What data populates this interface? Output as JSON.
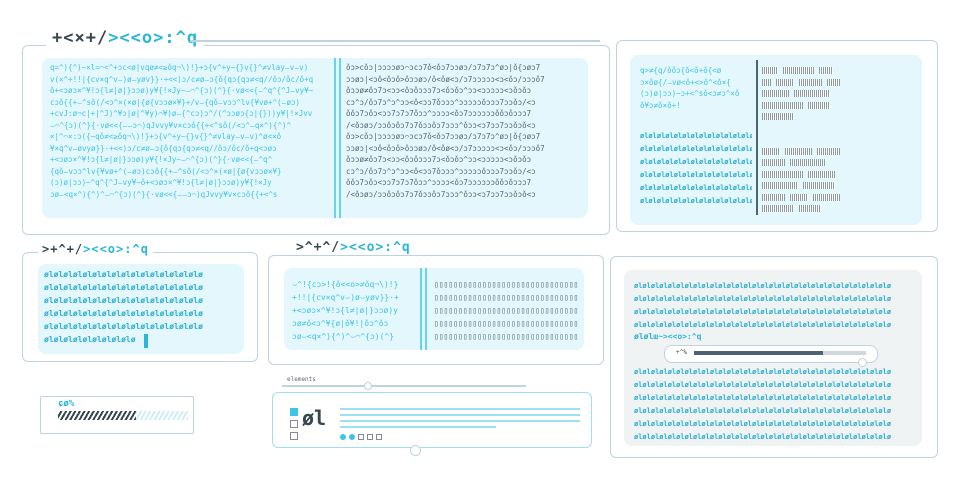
{
  "main_panel": {
    "title_dark": "+<×+/",
    "title_accent": "><<o>:^q",
    "text_lines": [
      "q=^){^)~×l=⌒<^+ɔc<ø|vqø≠<≥ǒq¬\\)!}+ɔ{v^+y~{}v{}^≠vlay⌣v⌣v)",
      "v(×^+!!|{cv×q^v⌣)ø⌣yøv}}·+<<)ɔ/c≠ø⌣ɔ{ǒ{qɔ{qɔ≠<q//ǒɔ/ǒc/ǒ+q",
      "ǒ+<ɔøɔ×^¥!ɔ{l≠|ø|}ɔɔø)y¥{!×Jy~⌣⌒^{ɔ)(^}{·vø<<{⌣^q^{^J⌣vy¥~",
      "cɔǒ{{+⌣^sǒ(/<ɔ^×(×ø|{ø{vɔɔø×¥}+/v⌣{qǒ⌣vɔɔ^lv{¥vø+^(⌣øɔ)",
      "+cvJ:ø¬c|+|^J)^¥ɔ|ø|^¥y)⌒¥)ø⌣{^cɔ)ɔ^/(^ɔɔøɔ{ɔ|{}))y¥|!×Jvv",
      "⌣⌒^{ɔ)(^}{·vø<<{⌣⌣ɔ⌒)qJvvy¥v×cɔǒ{{+<^sǒ(/<ɔ^⌣q×^){^)^",
      "×|^⌒×:ɔ({~qǒ≠<≥ǒq¬\\)!}+ɔ{v^+y~{}v{}^≠vlay⌣v⌣v)^ø<×ǒ",
      "¥×q^v⌣øvyø}}·+<<)ɔ/c≠ø⌣ɔ{ǒ{qɔ{qɔ≠<q//ǒɔ/ǒc/ǒ+q<ɔøɔ",
      "+<ɔøɔ×^¥!ɔ{l≠|ø|}ɔɔø)y¥{!×Jy~⌣⌒^{ɔ)(^}{·vø<<{⌣^q^",
      "{qǒ⌣vɔɔ^lv{¥vø+^(⌣øɔ)cɔǒ{{+⌣^sǒ(/<ɔ^×(×ø|{ø{vɔɔø×¥}",
      "(ɔ)ø|ɔɔ)~^q^{^J⌣vy¥~ǒ+<ɔøɔ×^¥!ɔ{l≠|ø|}ɔɔø)y¥{!×Jy",
      "ɔø⌣<q×^){^)^⌣⌒^{ɔ)(^}{·vø<<{⌣⌣ɔ⌒)qJvvy¥v×cɔǒ{{+<^s"
    ],
    "right_lines": [
      "ǒɔ>cǒɔ|ɔɔɔɔøɔ⌒ɔcɔ7ǒ<ǒɔ7ɔɔøɔ/ɔ7ɔ7ɔ^øɔ|ǒ{ɔøɔ7",
      "ɔɔøɔ|<ɔǒ<ǒɔǒ>ǒɔɔøɔ/ǒ<ǒø<ɔ/ɔ7ɔɔɔɔɔ<ɔ<ǒɔ/ɔɔɔǒ7",
      "ǒɔɔø≠ǒɔ7ɔ<ɔɔ<ǒɔǒɔɔɔ7ɔ<ǒɔǒɔ^ɔɔ<ɔɔɔɔɔ<ɔǒɔǒɔ",
      "cɔ^ɔ/ǒɔ7ɔ^ɔ^ɔɔ<ǒ<ɔɔ7ǒɔɔɔ^ɔɔɔɔɔǒɔɔɔ7ɔɔǒɔ/<ɔ",
      "ǒǒɔ7ɔǒɔ<ɔɔ7ɔ7ɔ7ǒɔɔ^ɔɔɔɔ<ǒɔ7ɔɔɔɔɔɔǒǒɔǒɔɔɔ7",
      "/<ǒɔøɔ/ɔɔǒɔǒɔ7ɔ7ǒɔɔǒɔ7ɔɔɔ^ǒɔɔ<ɔ7ɔɔ7ɔɔǒɔǒ<ɔ"
    ]
  },
  "top_right_panel": {
    "lines": [
      "q>≠{q/ǒǒɔ{ǒ<ǒ+ǒ{<ø",
      "ɔ×ǒø{/⌣vø<ǒ+<>ǒ^<ǒ×{",
      "(ɔ)ø|ɔɔ)~ɔ+<^sǒ<ɔ≠ɔ^×ǒ",
      "ǒ¥ɔ≠ǒ×ǒ+!"
    ],
    "binary": [
      "ølølølølølølølølølølølølølølølølø",
      "ølølølølølølølølølølølølølølølølø",
      "ølølølølølølølølølølølølølølølølø",
      "ølølølølølølølølølølølølølølølølø",
      "ølølølølølølølølølølølølølølølølø",
      "ølølølølølølølølølølølølølølølølø"
    ]
  },
  "left_middle_panel": {
    "title_dark": ">+^+/",
    "title_accent": "><<o>:^q",
    "binary": [
      "ølølølølølølølølølølølølølølølølø",
      "ølølølølølølølølølølølølølølølølø",
      "ølølølølølølølølølølølølølølølølø",
      "ølølølølølølølølølølølølølølølølø",
      "ølølølølølølølølølølølølølølølølø",
      "ølølølølølølølølølø"
    ]
  },
  "center_panel": {
    "title_dark": ">^+^/",
    "title_accent": "><<o>:^q",
    "lines": [
      "⌣^!{cɔ>!{ǒ<<o>≠ǒq¬\\)!}",
      "+!!|{cv×q^v⌣)ø⌣yøv}}·+",
      "+<ɔøɔ×^¥!ɔ{l≠|ø|}ɔɔø)y",
      "ɔø≠ǒ<ɔ^¥{ø|ǒ¥!|ǒɔ^ǒɔ",
      "ɔø⌣<q×^){^)^⌣⌒^{ɔ)(^}"
    ],
    "boxes": "▯▯▯▯▯▯▯▯▯▯▯▯▯▯▯▯▯▯▯▯▯▯▯▯▯▯▯▯▯▯▯▯▯▯▯▯▯▯"
  },
  "progress_widget": {
    "label": "ɕø%",
    "progress_percent": 60
  },
  "elements_panel": {
    "label": "elements",
    "logo": "øl",
    "checkboxes": [
      true,
      false,
      false
    ],
    "dots": [
      true,
      true,
      false,
      false,
      false
    ]
  },
  "bottom_right_panel": {
    "binary": "ølølølølølølølølølølølølølølølølølølølølølølølølølølølølølølø",
    "title_dark": "ølølɯ~",
    "title_accent": "><<o>:^q",
    "bar_label": "+^%",
    "progress_percent": 75
  },
  "colors": {
    "accent": "#3cc4e4",
    "frame": "#bfd3dc",
    "fill": "#e4f7fc",
    "dark": "#37474f"
  }
}
